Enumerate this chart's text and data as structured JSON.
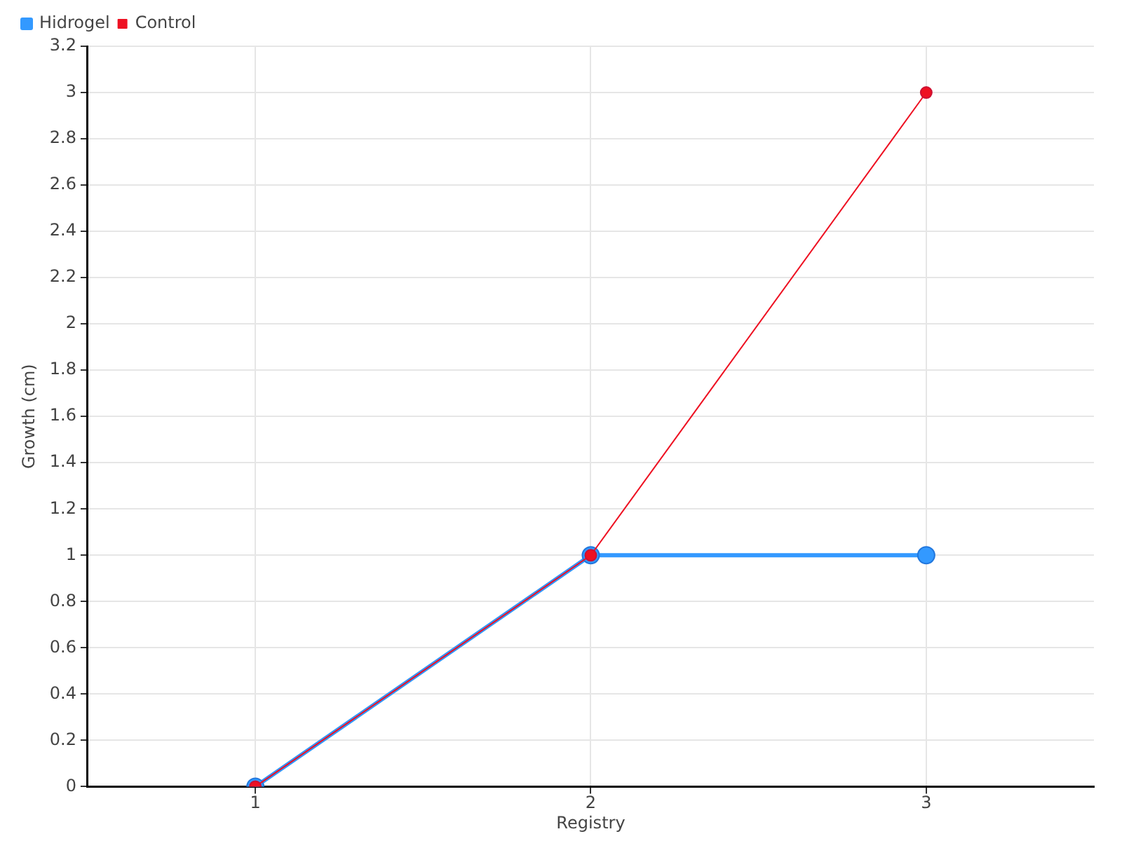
{
  "chart_data": {
    "type": "line",
    "xlabel": "Registry",
    "ylabel": "Growth (cm)",
    "x": [
      1,
      2,
      3
    ],
    "xlim": [
      0.5,
      3.5
    ],
    "xticks": [
      1,
      2,
      3
    ],
    "ylim": [
      0,
      3.2
    ],
    "yticks": [
      0,
      0.2,
      0.4,
      0.6,
      0.8,
      1,
      1.2,
      1.4,
      1.6,
      1.8,
      2,
      2.2,
      2.4,
      2.6,
      2.8,
      3,
      3.2
    ],
    "grid": true,
    "legend": "top left",
    "marker": "circle",
    "line_style": "solid",
    "series": [
      {
        "name": "Hidrogel",
        "color": "#3399ff",
        "values": [
          0,
          1,
          1
        ]
      },
      {
        "name": "Control",
        "color": "#ee1122",
        "values": [
          0,
          1,
          3
        ]
      }
    ]
  }
}
